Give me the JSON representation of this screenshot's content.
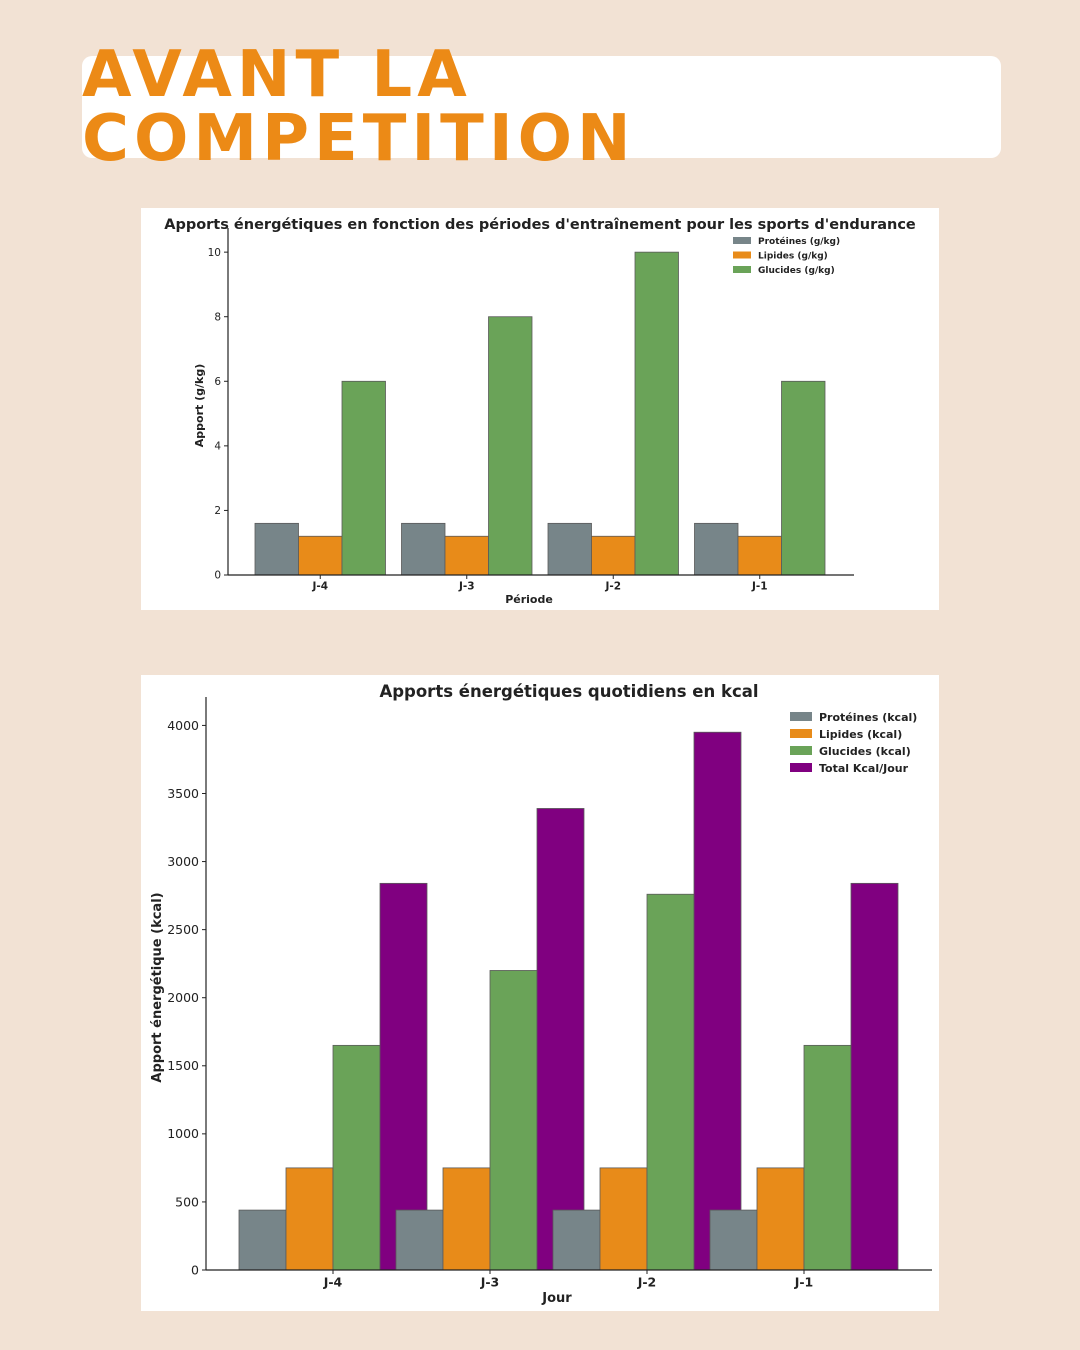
{
  "banner": {
    "title": "AVANT LA COMPETITION"
  },
  "chart_data": [
    {
      "type": "bar",
      "title": "Apports énergétiques en fonction des périodes d'entraînement pour les sports d'endurance",
      "xlabel": "Période",
      "ylabel": "Apport (g/kg)",
      "categories": [
        "J-4",
        "J-3",
        "J-2",
        "J-1"
      ],
      "ylim": [
        0,
        10.5
      ],
      "yticks": [
        "0",
        "2",
        "4",
        "6",
        "8",
        "10"
      ],
      "legend_position": "top-right",
      "series": [
        {
          "name": "Protéines (g/kg)",
          "color": "#778589",
          "values": [
            1.6,
            1.6,
            1.6,
            1.6
          ]
        },
        {
          "name": "Lipides (g/kg)",
          "color": "#e88b19",
          "values": [
            1.2,
            1.2,
            1.2,
            1.2
          ]
        },
        {
          "name": "Glucides (g/kg)",
          "color": "#6aa358",
          "values": [
            6,
            8,
            10,
            6
          ]
        }
      ]
    },
    {
      "type": "bar",
      "title": "Apports énergétiques quotidiens en kcal",
      "xlabel": "Jour",
      "ylabel": "Apport énergétique (kcal)",
      "categories": [
        "J-4",
        "J-3",
        "J-2",
        "J-1"
      ],
      "ylim": [
        0,
        4150
      ],
      "yticks": [
        "0",
        "500",
        "1000",
        "1500",
        "2000",
        "2500",
        "3000",
        "3500",
        "4000"
      ],
      "legend_position": "top-right",
      "series": [
        {
          "name": "Protéines (kcal)",
          "color": "#778589",
          "values": [
            440,
            440,
            440,
            440
          ]
        },
        {
          "name": "Lipides (kcal)",
          "color": "#e88b19",
          "values": [
            750,
            750,
            750,
            750
          ]
        },
        {
          "name": "Glucides (kcal)",
          "color": "#6aa358",
          "values": [
            1650,
            2200,
            2760,
            1650
          ]
        },
        {
          "name": "Total Kcal/Jour",
          "color": "#800080",
          "values": [
            2840,
            3390,
            3950,
            2840
          ]
        }
      ]
    }
  ]
}
